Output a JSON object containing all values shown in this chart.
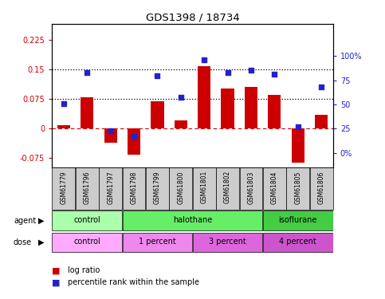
{
  "title": "GDS1398 / 18734",
  "samples": [
    "GSM61779",
    "GSM61796",
    "GSM61797",
    "GSM61798",
    "GSM61799",
    "GSM61800",
    "GSM61801",
    "GSM61802",
    "GSM61803",
    "GSM61804",
    "GSM61805",
    "GSM61806"
  ],
  "log_ratio": [
    0.008,
    0.078,
    -0.038,
    -0.068,
    0.068,
    0.02,
    0.158,
    0.1,
    0.105,
    0.085,
    -0.088,
    0.033
  ],
  "pct_rank": [
    51,
    83,
    23,
    17,
    80,
    57,
    96,
    83,
    85,
    81,
    27,
    68
  ],
  "bar_color": "#cc0000",
  "dot_color": "#2222cc",
  "ylim_left": [
    -0.1,
    0.265
  ],
  "ylim_right": [
    -14.9,
    133
  ],
  "yticks_left": [
    -0.075,
    0.0,
    0.075,
    0.15,
    0.225
  ],
  "ytick_labels_left": [
    "-0.075",
    "0",
    "0.075",
    "0.15",
    "0.225"
  ],
  "yticks_right": [
    0,
    25,
    50,
    75,
    100
  ],
  "ytick_labels_right": [
    "0%",
    "25",
    "50",
    "75",
    "100%"
  ],
  "hlines": [
    0.075,
    0.15
  ],
  "zero_line": 0.0,
  "agent_groups": [
    {
      "label": "control",
      "start": 0,
      "end": 3,
      "color": "#aaffaa"
    },
    {
      "label": "halothane",
      "start": 3,
      "end": 9,
      "color": "#66ee66"
    },
    {
      "label": "isoflurane",
      "start": 9,
      "end": 12,
      "color": "#44cc44"
    }
  ],
  "dose_groups": [
    {
      "label": "control",
      "start": 0,
      "end": 3,
      "color": "#ffaaff"
    },
    {
      "label": "1 percent",
      "start": 3,
      "end": 6,
      "color": "#ee88ee"
    },
    {
      "label": "3 percent",
      "start": 6,
      "end": 9,
      "color": "#dd66dd"
    },
    {
      "label": "4 percent",
      "start": 9,
      "end": 12,
      "color": "#cc55cc"
    }
  ],
  "legend_items": [
    {
      "label": "log ratio",
      "color": "#cc0000"
    },
    {
      "label": "percentile rank within the sample",
      "color": "#2222cc"
    }
  ],
  "agent_label": "agent",
  "dose_label": "dose",
  "tick_bg": "#cccccc"
}
